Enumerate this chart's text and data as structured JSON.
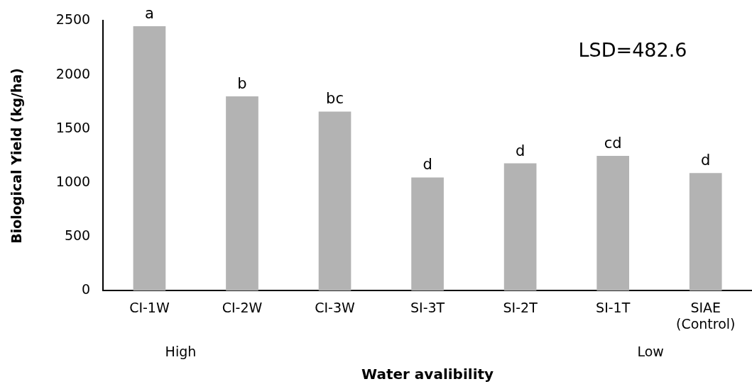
{
  "chart_data": {
    "type": "bar",
    "xlabel": "Water avalibility",
    "ylabel": "Biological Yield (kg/ha)",
    "categories": [
      "CI-1W",
      "CI-2W",
      "CI-3W",
      "SI-3T",
      "SI-2T",
      "SI-1T",
      "SIAE\n(Control)"
    ],
    "values": [
      2450,
      1800,
      1660,
      1050,
      1180,
      1250,
      1090
    ],
    "value_labels": [
      "a",
      "b",
      "bc",
      "d",
      "d",
      "cd",
      "d"
    ],
    "color": "#b3b3b3",
    "ylim": [
      0,
      2500
    ],
    "yticks": [
      0,
      500,
      1000,
      1500,
      2000,
      2500
    ],
    "annotations": [
      "LSD=482.6",
      "High",
      "Low"
    ],
    "grid": false,
    "legend": false
  }
}
